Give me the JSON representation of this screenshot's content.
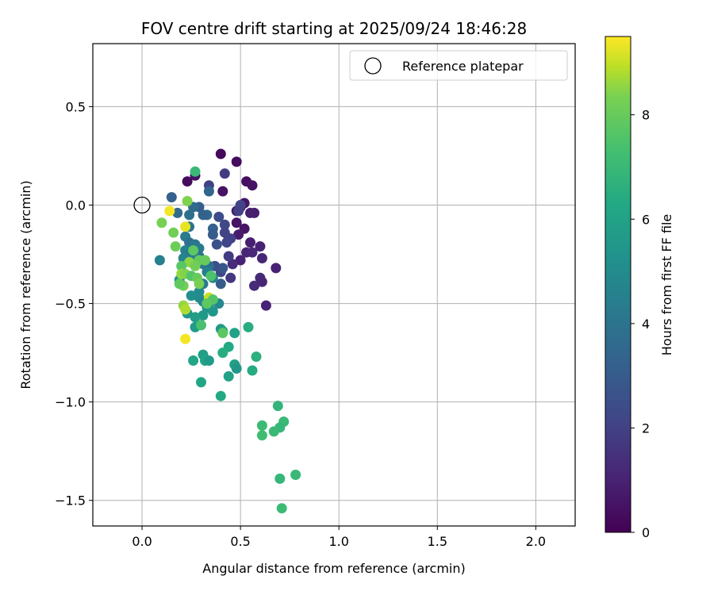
{
  "chart_data": {
    "type": "scatter",
    "title": "FOV centre drift starting at 2025/09/24 18:46:28",
    "xlabel": "Angular distance from reference (arcmin)",
    "ylabel": "Rotation from reference (arcmin)",
    "xlim": [
      -0.25,
      2.2
    ],
    "ylim": [
      -1.63,
      0.82
    ],
    "xticks": [
      0.0,
      0.5,
      1.0,
      1.5,
      2.0
    ],
    "xtick_labels": [
      "0.0",
      "0.5",
      "1.0",
      "1.5",
      "2.0"
    ],
    "yticks": [
      0.5,
      0.0,
      -0.5,
      -1.0,
      -1.5
    ],
    "ytick_labels": [
      "0.5",
      "0.0",
      "−0.5",
      "−1.0",
      "−1.5"
    ],
    "grid": true,
    "legend": {
      "position": "top-right",
      "entries": [
        "Reference platepar"
      ]
    },
    "reference_point": {
      "x": 0.0,
      "y": 0.0
    },
    "colorbar": {
      "label": "Hours from first FF file",
      "range": [
        0,
        9.5
      ],
      "ticks": [
        0,
        2,
        4,
        6,
        8
      ],
      "tick_labels": [
        "0",
        "2",
        "4",
        "6",
        "8"
      ],
      "colormap": "viridis"
    },
    "points": [
      {
        "x": 0.4,
        "y": 0.26,
        "c": 0.2
      },
      {
        "x": 0.48,
        "y": 0.22,
        "c": 0.3
      },
      {
        "x": 0.53,
        "y": 0.12,
        "c": 0.4
      },
      {
        "x": 0.56,
        "y": 0.1,
        "c": 0.5
      },
      {
        "x": 0.41,
        "y": 0.07,
        "c": 0.5
      },
      {
        "x": 0.52,
        "y": 0.01,
        "c": 0.6
      },
      {
        "x": 0.5,
        "y": -0.01,
        "c": 0.7
      },
      {
        "x": 0.48,
        "y": -0.03,
        "c": 0.6
      },
      {
        "x": 0.57,
        "y": -0.04,
        "c": 0.8
      },
      {
        "x": 0.55,
        "y": -0.04,
        "c": 0.9
      },
      {
        "x": 0.48,
        "y": -0.09,
        "c": 0.5
      },
      {
        "x": 0.52,
        "y": -0.12,
        "c": 0.6
      },
      {
        "x": 0.49,
        "y": -0.15,
        "c": 0.8
      },
      {
        "x": 0.44,
        "y": -0.17,
        "c": 1.2
      },
      {
        "x": 0.55,
        "y": -0.19,
        "c": 0.9
      },
      {
        "x": 0.6,
        "y": -0.21,
        "c": 1.0
      },
      {
        "x": 0.53,
        "y": -0.24,
        "c": 1.1
      },
      {
        "x": 0.56,
        "y": -0.24,
        "c": 1.2
      },
      {
        "x": 0.61,
        "y": -0.27,
        "c": 1.1
      },
      {
        "x": 0.5,
        "y": -0.28,
        "c": 1.0
      },
      {
        "x": 0.46,
        "y": -0.3,
        "c": 1.3
      },
      {
        "x": 0.68,
        "y": -0.32,
        "c": 1.0
      },
      {
        "x": 0.6,
        "y": -0.37,
        "c": 1.2
      },
      {
        "x": 0.61,
        "y": -0.39,
        "c": 1.1
      },
      {
        "x": 0.57,
        "y": -0.41,
        "c": 1.3
      },
      {
        "x": 0.63,
        "y": -0.51,
        "c": 1.0
      },
      {
        "x": 0.45,
        "y": -0.37,
        "c": 1.7
      },
      {
        "x": 0.42,
        "y": 0.16,
        "c": 1.8
      },
      {
        "x": 0.27,
        "y": 0.15,
        "c": 0.5
      },
      {
        "x": 0.23,
        "y": 0.12,
        "c": 0.3
      },
      {
        "x": 0.34,
        "y": 0.1,
        "c": 2.0
      },
      {
        "x": 0.34,
        "y": 0.07,
        "c": 3.4
      },
      {
        "x": 0.5,
        "y": 0.0,
        "c": 2.1
      },
      {
        "x": 0.49,
        "y": -0.03,
        "c": 2.0
      },
      {
        "x": 0.39,
        "y": -0.06,
        "c": 2.4
      },
      {
        "x": 0.42,
        "y": -0.1,
        "c": 2.3
      },
      {
        "x": 0.42,
        "y": -0.14,
        "c": 2.1
      },
      {
        "x": 0.45,
        "y": -0.17,
        "c": 2.0
      },
      {
        "x": 0.43,
        "y": -0.19,
        "c": 2.2
      },
      {
        "x": 0.38,
        "y": -0.2,
        "c": 2.6
      },
      {
        "x": 0.44,
        "y": -0.26,
        "c": 1.8
      },
      {
        "x": 0.4,
        "y": -0.34,
        "c": 2.3
      },
      {
        "x": 0.37,
        "y": -0.31,
        "c": 2.5
      },
      {
        "x": 0.41,
        "y": -0.32,
        "c": 2.8
      },
      {
        "x": 0.4,
        "y": -0.4,
        "c": 3.0
      },
      {
        "x": 0.36,
        "y": -0.12,
        "c": 3.2
      },
      {
        "x": 0.36,
        "y": -0.15,
        "c": 3.0
      },
      {
        "x": 0.33,
        "y": -0.05,
        "c": 3.5
      },
      {
        "x": 0.31,
        "y": -0.05,
        "c": 3.3
      },
      {
        "x": 0.29,
        "y": -0.01,
        "c": 3.1
      },
      {
        "x": 0.26,
        "y": -0.01,
        "c": 3.6
      },
      {
        "x": 0.24,
        "y": -0.05,
        "c": 3.8
      },
      {
        "x": 0.24,
        "y": -0.11,
        "c": 4.0
      },
      {
        "x": 0.22,
        "y": -0.16,
        "c": 4.3
      },
      {
        "x": 0.24,
        "y": -0.19,
        "c": 3.9
      },
      {
        "x": 0.27,
        "y": -0.2,
        "c": 4.1
      },
      {
        "x": 0.29,
        "y": -0.22,
        "c": 4.3
      },
      {
        "x": 0.22,
        "y": -0.23,
        "c": 4.5
      },
      {
        "x": 0.25,
        "y": -0.24,
        "c": 4.2
      },
      {
        "x": 0.29,
        "y": -0.26,
        "c": 4.0
      },
      {
        "x": 0.21,
        "y": -0.27,
        "c": 4.6
      },
      {
        "x": 0.26,
        "y": -0.28,
        "c": 4.4
      },
      {
        "x": 0.31,
        "y": -0.3,
        "c": 4.2
      },
      {
        "x": 0.34,
        "y": -0.31,
        "c": 3.9
      },
      {
        "x": 0.33,
        "y": -0.34,
        "c": 4.5
      },
      {
        "x": 0.36,
        "y": -0.37,
        "c": 4.7
      },
      {
        "x": 0.31,
        "y": -0.4,
        "c": 4.3
      },
      {
        "x": 0.29,
        "y": -0.44,
        "c": 4.9
      },
      {
        "x": 0.25,
        "y": -0.46,
        "c": 5.2
      },
      {
        "x": 0.29,
        "y": -0.47,
        "c": 5.0
      },
      {
        "x": 0.31,
        "y": -0.49,
        "c": 4.8
      },
      {
        "x": 0.33,
        "y": -0.52,
        "c": 5.3
      },
      {
        "x": 0.35,
        "y": -0.49,
        "c": 5.1
      },
      {
        "x": 0.39,
        "y": -0.5,
        "c": 4.9
      },
      {
        "x": 0.36,
        "y": -0.54,
        "c": 5.5
      },
      {
        "x": 0.31,
        "y": -0.56,
        "c": 5.6
      },
      {
        "x": 0.27,
        "y": -0.57,
        "c": 5.8
      },
      {
        "x": 0.27,
        "y": -0.62,
        "c": 5.7
      },
      {
        "x": 0.15,
        "y": 0.04,
        "c": 3.2
      },
      {
        "x": 0.18,
        "y": -0.04,
        "c": 3.6
      },
      {
        "x": 0.09,
        "y": -0.28,
        "c": 4.5
      },
      {
        "x": 0.19,
        "y": -0.38,
        "c": 5.3
      },
      {
        "x": 0.23,
        "y": -0.55,
        "c": 5.5
      },
      {
        "x": 0.4,
        "y": -0.63,
        "c": 5.6
      },
      {
        "x": 0.41,
        "y": -0.64,
        "c": 5.8
      },
      {
        "x": 0.47,
        "y": -0.65,
        "c": 6.0
      },
      {
        "x": 0.44,
        "y": -0.72,
        "c": 6.3
      },
      {
        "x": 0.41,
        "y": -0.75,
        "c": 6.5
      },
      {
        "x": 0.31,
        "y": -0.76,
        "c": 5.9
      },
      {
        "x": 0.32,
        "y": -0.79,
        "c": 6.1
      },
      {
        "x": 0.34,
        "y": -0.79,
        "c": 5.7
      },
      {
        "x": 0.26,
        "y": -0.79,
        "c": 6.2
      },
      {
        "x": 0.47,
        "y": -0.81,
        "c": 5.9
      },
      {
        "x": 0.48,
        "y": -0.83,
        "c": 5.5
      },
      {
        "x": 0.44,
        "y": -0.87,
        "c": 6.0
      },
      {
        "x": 0.3,
        "y": -0.9,
        "c": 6.2
      },
      {
        "x": 0.4,
        "y": -0.97,
        "c": 6.3
      },
      {
        "x": 0.54,
        "y": -0.62,
        "c": 6.5
      },
      {
        "x": 0.58,
        "y": -0.77,
        "c": 6.6
      },
      {
        "x": 0.56,
        "y": -0.84,
        "c": 6.4
      },
      {
        "x": 0.69,
        "y": -1.02,
        "c": 6.8
      },
      {
        "x": 0.72,
        "y": -1.1,
        "c": 7.0
      },
      {
        "x": 0.7,
        "y": -1.13,
        "c": 6.9
      },
      {
        "x": 0.61,
        "y": -1.12,
        "c": 7.1
      },
      {
        "x": 0.67,
        "y": -1.15,
        "c": 7.0
      },
      {
        "x": 0.61,
        "y": -1.17,
        "c": 7.2
      },
      {
        "x": 0.7,
        "y": -1.39,
        "c": 6.9
      },
      {
        "x": 0.78,
        "y": -1.37,
        "c": 7.0
      },
      {
        "x": 0.71,
        "y": -1.54,
        "c": 7.1
      },
      {
        "x": 0.27,
        "y": 0.17,
        "c": 7.0
      },
      {
        "x": 0.23,
        "y": 0.02,
        "c": 8.4
      },
      {
        "x": 0.14,
        "y": -0.03,
        "c": 9.4
      },
      {
        "x": 0.1,
        "y": -0.09,
        "c": 8.3
      },
      {
        "x": 0.16,
        "y": -0.14,
        "c": 8.2
      },
      {
        "x": 0.22,
        "y": -0.11,
        "c": 9.3
      },
      {
        "x": 0.17,
        "y": -0.21,
        "c": 8.1
      },
      {
        "x": 0.26,
        "y": -0.23,
        "c": 7.8
      },
      {
        "x": 0.29,
        "y": -0.28,
        "c": 7.9
      },
      {
        "x": 0.32,
        "y": -0.28,
        "c": 8.0
      },
      {
        "x": 0.24,
        "y": -0.29,
        "c": 8.5
      },
      {
        "x": 0.27,
        "y": -0.31,
        "c": 8.2
      },
      {
        "x": 0.2,
        "y": -0.31,
        "c": 7.7
      },
      {
        "x": 0.2,
        "y": -0.35,
        "c": 8.6
      },
      {
        "x": 0.22,
        "y": -0.35,
        "c": 8.4
      },
      {
        "x": 0.25,
        "y": -0.36,
        "c": 7.6
      },
      {
        "x": 0.28,
        "y": -0.37,
        "c": 8.0
      },
      {
        "x": 0.35,
        "y": -0.36,
        "c": 7.5
      },
      {
        "x": 0.29,
        "y": -0.4,
        "c": 8.3
      },
      {
        "x": 0.21,
        "y": -0.41,
        "c": 8.2
      },
      {
        "x": 0.19,
        "y": -0.4,
        "c": 7.9
      },
      {
        "x": 0.34,
        "y": -0.47,
        "c": 9.0
      },
      {
        "x": 0.36,
        "y": -0.48,
        "c": 7.6
      },
      {
        "x": 0.33,
        "y": -0.5,
        "c": 7.8
      },
      {
        "x": 0.21,
        "y": -0.51,
        "c": 8.6
      },
      {
        "x": 0.22,
        "y": -0.53,
        "c": 8.8
      },
      {
        "x": 0.3,
        "y": -0.61,
        "c": 7.4
      },
      {
        "x": 0.41,
        "y": -0.65,
        "c": 7.8
      },
      {
        "x": 0.22,
        "y": -0.68,
        "c": 9.4
      }
    ]
  }
}
